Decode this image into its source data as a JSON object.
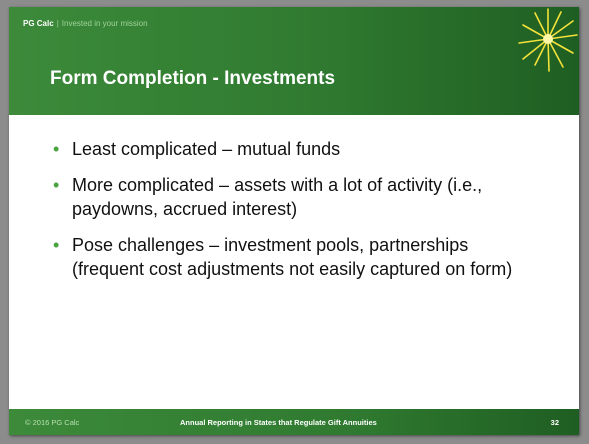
{
  "header": {
    "brand": "PG Calc",
    "separator": "|",
    "tagline": "Invested in your mission",
    "title": "Form Completion - Investments"
  },
  "bullets": [
    "Least complicated – mutual funds",
    "More complicated – assets with a lot of activity (i.e., paydowns, accrued interest)",
    "Pose challenges – investment pools, partnerships (frequent cost adjustments not easily captured on form)"
  ],
  "footer": {
    "copyright": "© 2016 PG Calc",
    "title": "Annual Reporting in States that Regulate Gift Annuities",
    "page": "32"
  }
}
